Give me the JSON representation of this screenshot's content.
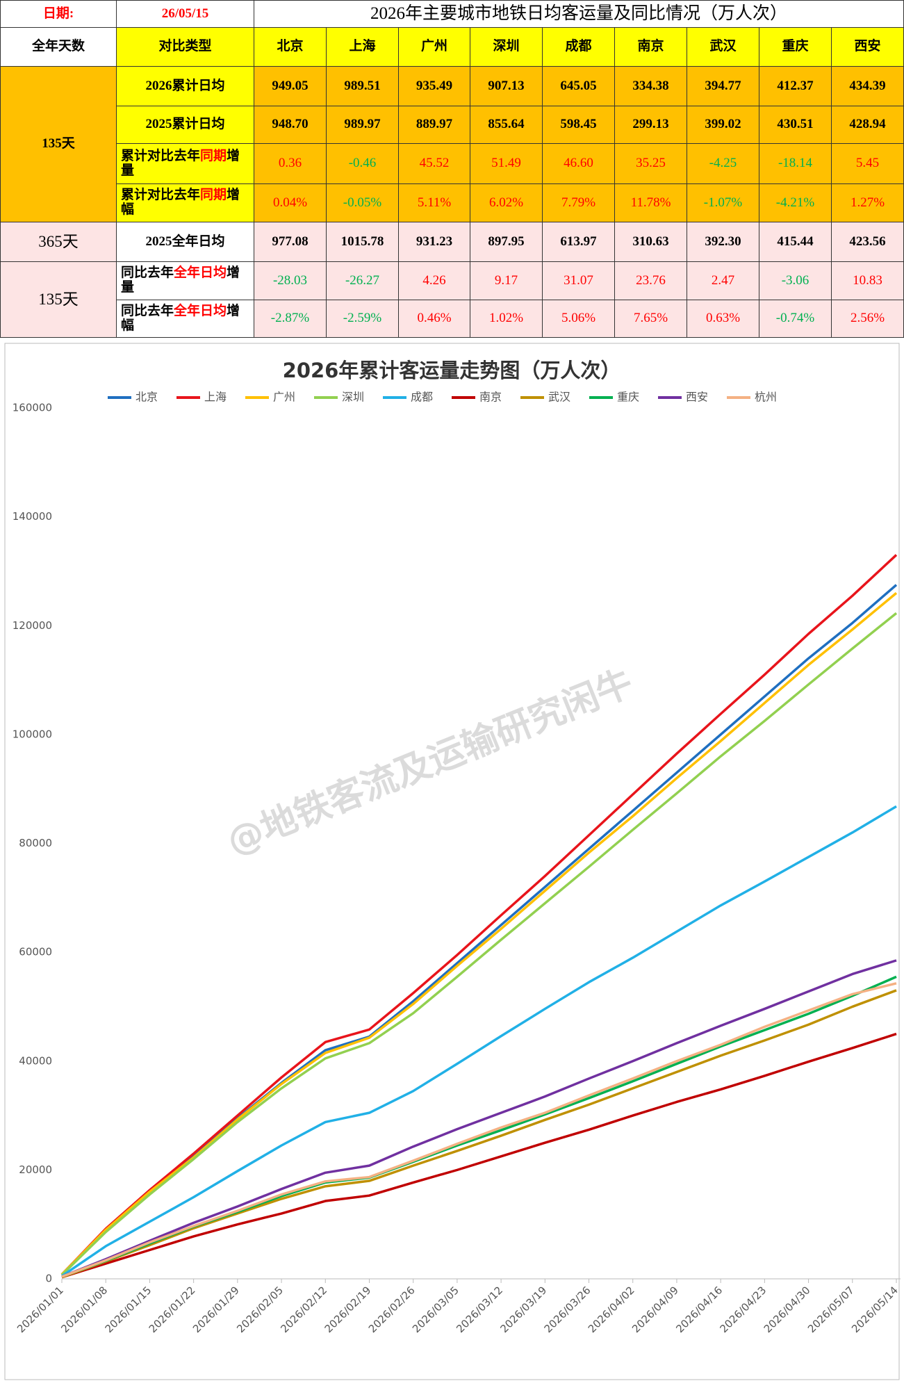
{
  "table": {
    "date_label": "日期:",
    "date": "26/05/15",
    "title": "2026年主要城市地铁日均客运量及同比情况（万人次）",
    "positive_color": "#ff0000",
    "negative_color": "#00b050",
    "header": {
      "days": "全年天数",
      "type": "对比类型",
      "cities": [
        "北京",
        "上海",
        "广州",
        "深圳",
        "成都",
        "南京",
        "武汉",
        "重庆",
        "西安"
      ]
    },
    "sections": [
      {
        "days": "135天",
        "color": "#ffc000",
        "rows": [
          {
            "type": [
              {
                "text": "2026累计日均"
              }
            ],
            "values": [
              "949.05",
              "989.51",
              "935.49",
              "907.13",
              "645.05",
              "334.38",
              "394.77",
              "412.37",
              "434.39"
            ]
          },
          {
            "type": [
              {
                "text": "2025累计日均"
              }
            ],
            "values": [
              "948.70",
              "989.97",
              "889.97",
              "855.64",
              "598.45",
              "299.13",
              "399.02",
              "430.51",
              "428.94"
            ]
          },
          {
            "type": [
              {
                "text": "累计对比去年"
              },
              {
                "text": "同期",
                "color": "#ff0000"
              },
              {
                "text": "增量"
              }
            ],
            "signed": true,
            "values": [
              "0.36",
              "-0.46",
              "45.52",
              "51.49",
              "46.60",
              "35.25",
              "-4.25",
              "-18.14",
              "5.45"
            ]
          },
          {
            "type": [
              {
                "text": "累计对比去年"
              },
              {
                "text": "同期",
                "color": "#ff0000"
              },
              {
                "text": "增幅"
              }
            ],
            "signed": true,
            "values": [
              "0.04%",
              "-0.05%",
              "5.11%",
              "6.02%",
              "7.79%",
              "11.78%",
              "-1.07%",
              "-4.21%",
              "1.27%"
            ]
          }
        ]
      },
      {
        "days": "365天",
        "color": "#fde4e4",
        "rows": [
          {
            "type": [
              {
                "text": "2025全年日均"
              }
            ],
            "values": [
              "977.08",
              "1015.78",
              "931.23",
              "897.95",
              "613.97",
              "310.63",
              "392.30",
              "415.44",
              "423.56"
            ]
          }
        ]
      },
      {
        "days": "135天",
        "color": "#fde4e4",
        "rows": [
          {
            "type": [
              {
                "text": "同比去年"
              },
              {
                "text": "全年日均",
                "color": "#ff0000"
              },
              {
                "text": "增量"
              }
            ],
            "signed": true,
            "values": [
              "-28.03",
              "-26.27",
              "4.26",
              "9.17",
              "31.07",
              "23.76",
              "2.47",
              "-3.06",
              "10.83"
            ]
          },
          {
            "type": [
              {
                "text": "同比去年"
              },
              {
                "text": "全年日均",
                "color": "#ff0000"
              },
              {
                "text": "增幅"
              }
            ],
            "signed": true,
            "values": [
              "-2.87%",
              "-2.59%",
              "0.46%",
              "1.02%",
              "5.06%",
              "7.65%",
              "0.63%",
              "-0.74%",
              "2.56%"
            ]
          }
        ]
      }
    ]
  },
  "watermark": "@地铁客流及运输研究闲牛",
  "chart_data": {
    "type": "line",
    "title": "2026年累计客运量走势图（万人次）",
    "categories": [
      "2026/01/01",
      "2026/01/08",
      "2026/01/15",
      "2026/01/22",
      "2026/01/29",
      "2026/02/05",
      "2026/02/12",
      "2026/02/19",
      "2026/02/26",
      "2026/03/05",
      "2026/03/12",
      "2026/03/19",
      "2026/03/26",
      "2026/04/02",
      "2026/04/09",
      "2026/04/16",
      "2026/04/23",
      "2026/04/30",
      "2026/05/07",
      "2026/05/14"
    ],
    "ylim": [
      0,
      160000
    ],
    "yticks": [
      0,
      20000,
      40000,
      60000,
      80000,
      100000,
      120000,
      140000,
      160000
    ],
    "grid": false,
    "legend": "top",
    "series": [
      {
        "name": "北京",
        "color": "#1f6fc0",
        "values": [
          800,
          9000,
          16000,
          22500,
          29500,
          36000,
          42000,
          44500,
          51000,
          58000,
          65000,
          72000,
          79000,
          86000,
          93000,
          100000,
          107000,
          114000,
          120500,
          127500
        ]
      },
      {
        "name": "上海",
        "color": "#e8141b",
        "values": [
          800,
          9200,
          16300,
          23000,
          30000,
          37000,
          43500,
          45800,
          52500,
          59500,
          66800,
          74000,
          81500,
          89000,
          96500,
          103800,
          111000,
          118500,
          125500,
          133000
        ]
      },
      {
        "name": "广州",
        "color": "#ffc000",
        "values": [
          800,
          9000,
          16000,
          22300,
          29300,
          35800,
          41500,
          44300,
          50500,
          57500,
          64300,
          71300,
          78300,
          85000,
          92000,
          98800,
          105800,
          112800,
          119300,
          126000
        ]
      },
      {
        "name": "深圳",
        "color": "#92d050",
        "values": [
          700,
          8600,
          15500,
          22000,
          28800,
          35000,
          40500,
          43300,
          48800,
          55500,
          62300,
          69000,
          75700,
          82500,
          89200,
          96000,
          102500,
          109200,
          115800,
          122300
        ]
      },
      {
        "name": "成都",
        "color": "#21b0e6",
        "values": [
          500,
          6000,
          10500,
          15000,
          19800,
          24500,
          28800,
          30500,
          34500,
          39500,
          44600,
          49600,
          54500,
          59000,
          63800,
          68600,
          73000,
          77500,
          82000,
          86800
        ]
      },
      {
        "name": "南京",
        "color": "#c00000",
        "values": [
          300,
          2800,
          5300,
          7800,
          10000,
          12000,
          14300,
          15300,
          17700,
          20000,
          22500,
          25000,
          27400,
          30000,
          32500,
          34800,
          37300,
          39900,
          42400,
          45000
        ]
      },
      {
        "name": "武汉",
        "color": "#bf9000",
        "values": [
          300,
          3200,
          6200,
          9300,
          12000,
          14700,
          17000,
          18000,
          20800,
          23500,
          26300,
          29200,
          32000,
          35000,
          38000,
          41000,
          43800,
          46700,
          50000,
          53000
        ]
      },
      {
        "name": "重庆",
        "color": "#00b050",
        "values": [
          400,
          3300,
          6500,
          9600,
          12300,
          15200,
          17700,
          18600,
          21500,
          24500,
          27300,
          30200,
          33200,
          36300,
          39500,
          42700,
          45700,
          48700,
          52000,
          55500
        ]
      },
      {
        "name": "西安",
        "color": "#7030a0",
        "values": [
          400,
          3600,
          7000,
          10300,
          13300,
          16500,
          19500,
          20800,
          24300,
          27500,
          30500,
          33500,
          36800,
          40000,
          43300,
          46500,
          49600,
          52800,
          56000,
          58500
        ]
      },
      {
        "name": "杭州",
        "color": "#f4b183",
        "values": [
          400,
          3400,
          6700,
          9700,
          12500,
          15500,
          17900,
          18700,
          21700,
          24800,
          27800,
          30500,
          33700,
          36800,
          40000,
          43000,
          46300,
          49300,
          52300,
          54300
        ]
      }
    ]
  }
}
